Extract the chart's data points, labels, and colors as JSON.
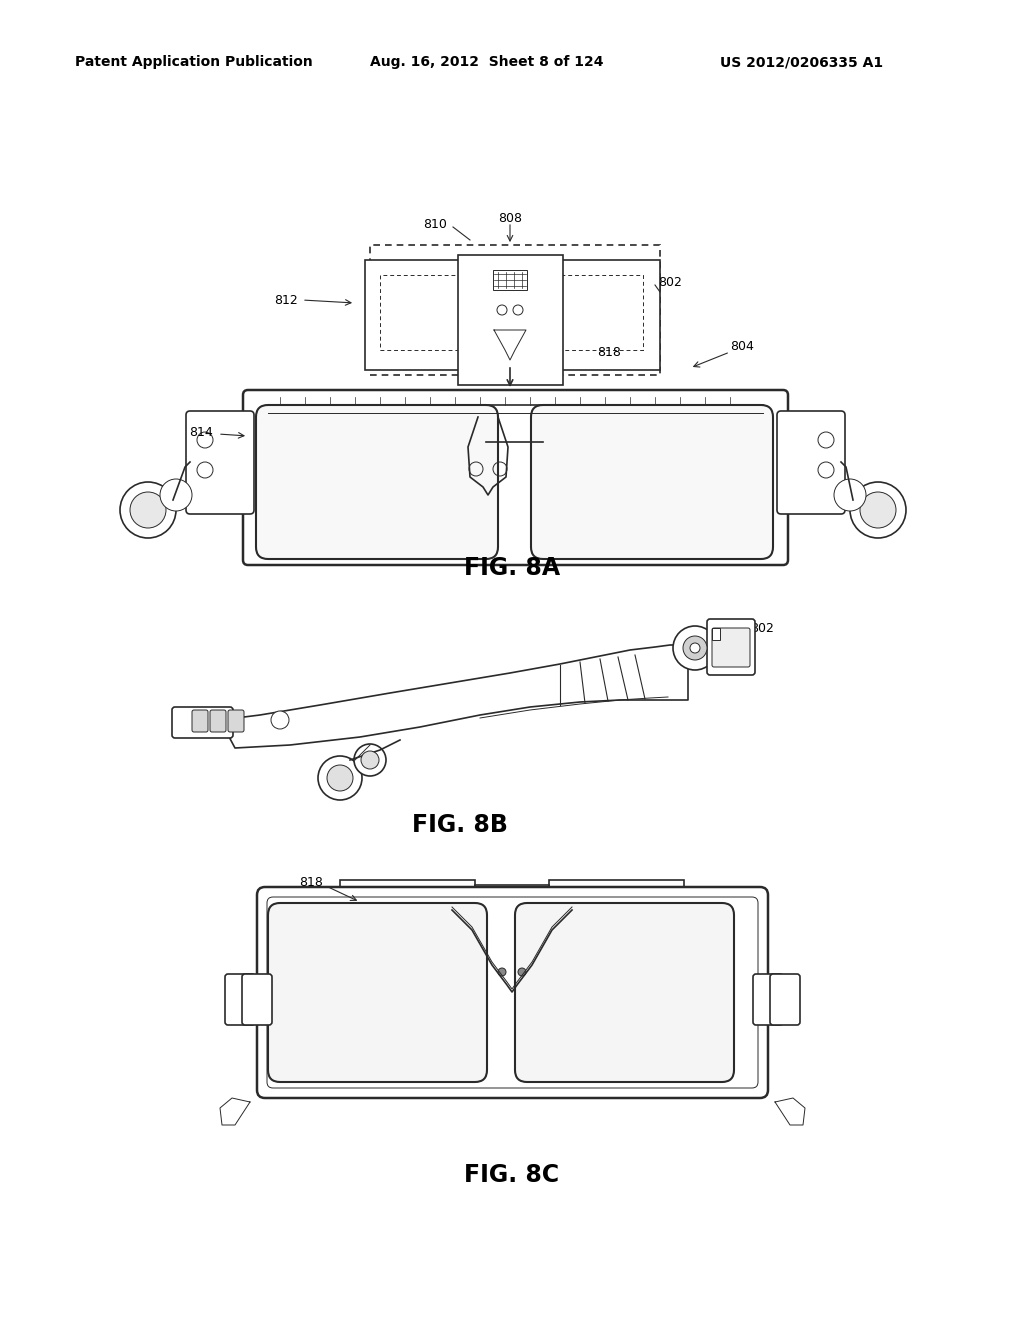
{
  "page_title_left": "Patent Application Publication",
  "page_title_center": "Aug. 16, 2012  Sheet 8 of 124",
  "page_title_right": "US 2012/0206335 A1",
  "background_color": "#ffffff",
  "text_color": "#000000",
  "line_color": "#2a2a2a",
  "title_fontsize": 10,
  "fig_label_fontsize": 17,
  "ref_fontsize": 9
}
